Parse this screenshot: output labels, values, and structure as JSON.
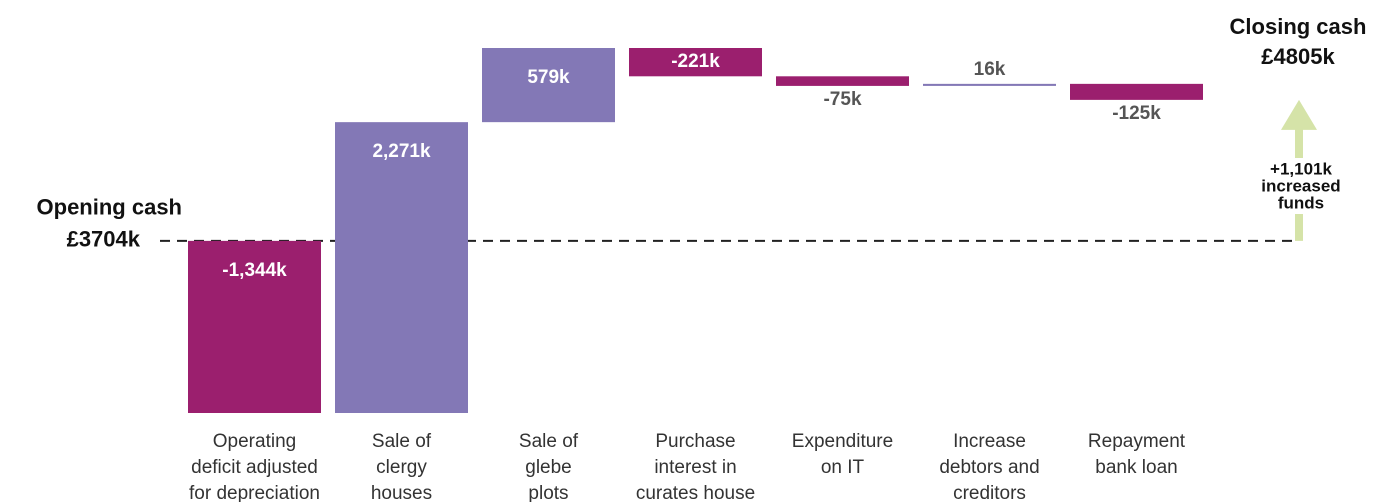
{
  "chart_data": {
    "type": "waterfall",
    "opening_label": "Opening cash",
    "opening": 3704,
    "opening_value_label": "£3704k",
    "closing_label": "Closing cash",
    "closing": 4805,
    "closing_value_label": "£4805k",
    "change": 1101,
    "change_label": "+1,101k",
    "change_text": [
      "increased",
      "funds"
    ],
    "categories": [
      [
        "Operating",
        "deficit adjusted",
        "for depreciation"
      ],
      [
        "Sale of",
        "clergy",
        "houses"
      ],
      [
        "Sale of",
        "glebe",
        "plots"
      ],
      [
        "Purchase",
        "interest in",
        "curates house"
      ],
      [
        "Expenditure",
        "on IT"
      ],
      [
        "Increase",
        "debtors and",
        "creditors"
      ],
      [
        "Repayment",
        "bank loan"
      ]
    ],
    "values": [
      -1344,
      2271,
      579,
      -221,
      -75,
      16,
      -125
    ],
    "value_labels": [
      "-1,344k",
      "2,271k",
      "579k",
      "-221k",
      "-75k",
      "16k",
      "-125k"
    ],
    "colors": {
      "positive": "#8378b6",
      "negative": "#9b1f6e",
      "arrow": "#d5e3a8",
      "outside_label": "#555555",
      "inside_label": "#ffffff"
    }
  }
}
